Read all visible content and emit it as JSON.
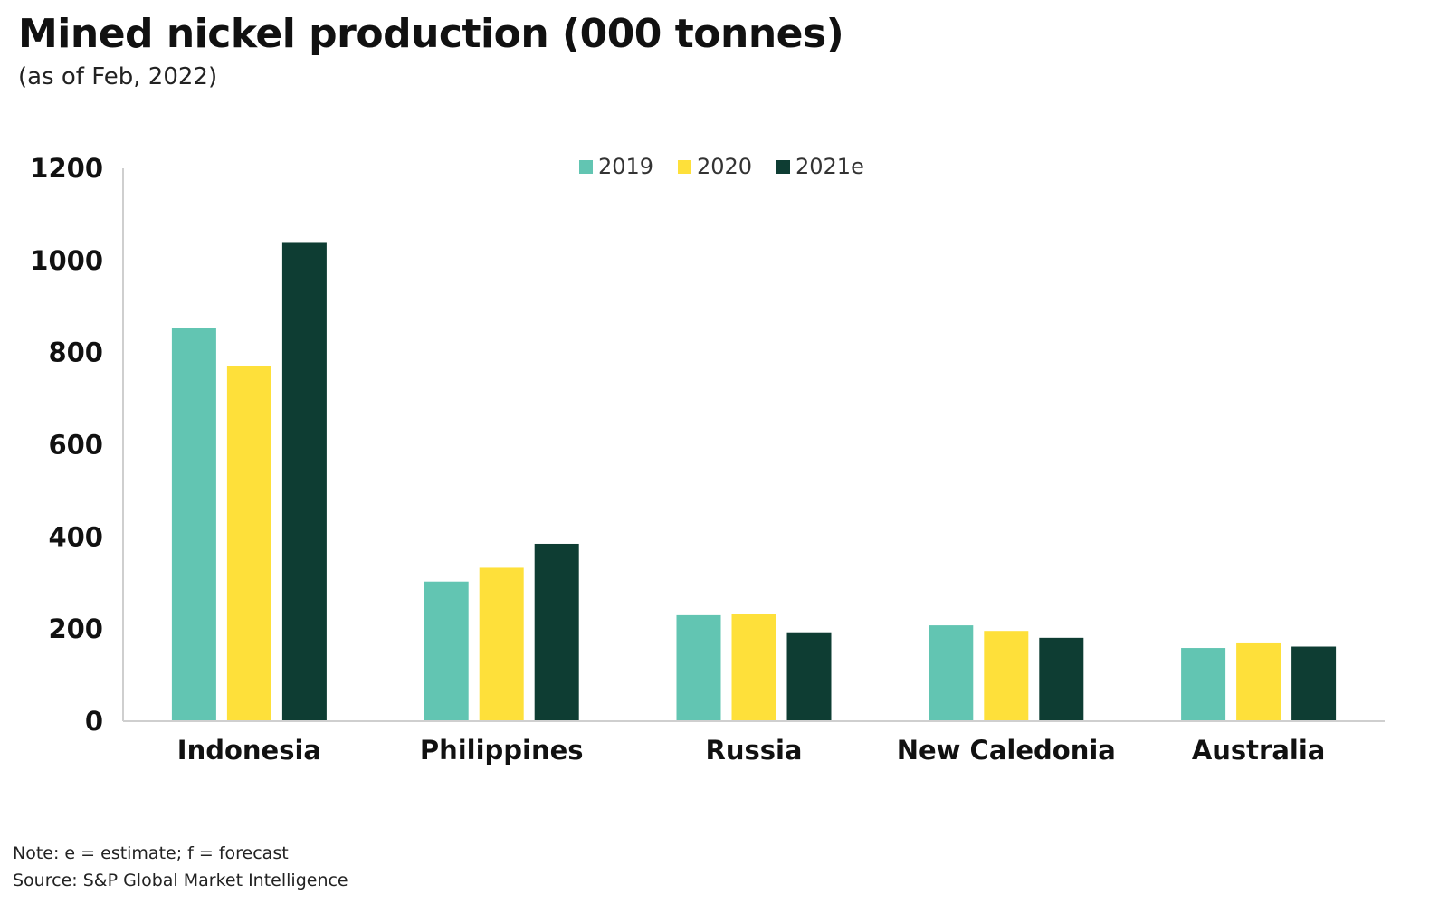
{
  "header": {
    "title": "Mined nickel production (000 tonnes)",
    "subtitle": "(as of Feb, 2022)"
  },
  "footer": {
    "note": "Note: e = estimate; f = forecast",
    "source": "Source: S&P Global Market Intelligence"
  },
  "chart_data": {
    "type": "bar",
    "categories": [
      "Indonesia",
      "Philippines",
      "Russia",
      "New Caledonia",
      "Australia"
    ],
    "series": [
      {
        "name": "2019",
        "color": "#62C5B2",
        "values": [
          853,
          303,
          230,
          208,
          159
        ]
      },
      {
        "name": "2020",
        "color": "#FEE03A",
        "values": [
          770,
          333,
          233,
          196,
          169
        ]
      },
      {
        "name": "2021e",
        "color": "#0E3D33",
        "values": [
          1040,
          385,
          193,
          181,
          162
        ]
      }
    ],
    "y_ticks": [
      "0",
      "200",
      "400",
      "600",
      "800",
      "1000",
      "1200"
    ],
    "ylim": [
      0,
      1200
    ],
    "legend_position": "top-center",
    "grid": false
  }
}
